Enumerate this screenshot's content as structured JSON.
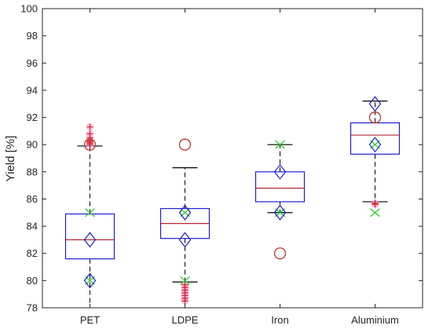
{
  "chart_data": {
    "type": "box",
    "title": "",
    "xlabel": "",
    "ylabel": "Yield [%]",
    "ylim": [
      78,
      100
    ],
    "yticks": [
      78,
      80,
      82,
      84,
      86,
      88,
      90,
      92,
      94,
      96,
      98,
      100
    ],
    "grid": false,
    "categories": [
      "PET",
      "LDPE",
      "Iron",
      "Aluminium"
    ],
    "boxes": [
      {
        "category": "PET",
        "whisker_low": 78.0,
        "q1": 81.6,
        "median": 83.0,
        "q3": 84.9,
        "whisker_high": 89.9,
        "outliers": [
          90.0,
          90.1,
          90.2,
          90.3,
          90.5,
          90.8,
          91.3
        ]
      },
      {
        "category": "LDPE",
        "whisker_low": 79.9,
        "q1": 83.1,
        "median": 84.2,
        "q3": 85.3,
        "whisker_high": 88.3,
        "outliers": [
          79.7,
          79.5,
          79.3,
          79.1,
          78.9,
          78.7,
          78.5
        ]
      },
      {
        "category": "Iron",
        "whisker_low": 85.0,
        "q1": 85.8,
        "median": 86.8,
        "q3": 88.0,
        "whisker_high": 90.0,
        "outliers": []
      },
      {
        "category": "Aluminium",
        "whisker_low": 85.8,
        "q1": 89.3,
        "median": 90.7,
        "q3": 91.6,
        "whisker_high": 93.2,
        "outliers": [
          85.7,
          85.6
        ]
      }
    ],
    "markers": {
      "circle": [
        90.0,
        90.0,
        82.0,
        92.0
      ],
      "diamond": [
        [
          80.0,
          83.0
        ],
        [
          83.0,
          85.0
        ],
        [
          85.0,
          88.0
        ],
        [
          90.0,
          93.0
        ]
      ],
      "x": [
        [
          85.0,
          80.0
        ],
        [
          85.0,
          80.0
        ],
        [
          90.0,
          85.0
        ],
        [
          90.0,
          85.0
        ]
      ]
    },
    "colors": {
      "box": "#1f1fd1",
      "median": "#b5282d",
      "whisker": "#000000",
      "outlier": "#d42020",
      "outlier_halo": "#f5a3d8",
      "circle_marker": "#c0392b",
      "diamond_marker": "#1f1fd1",
      "x_marker": "#2fcc2f"
    }
  }
}
